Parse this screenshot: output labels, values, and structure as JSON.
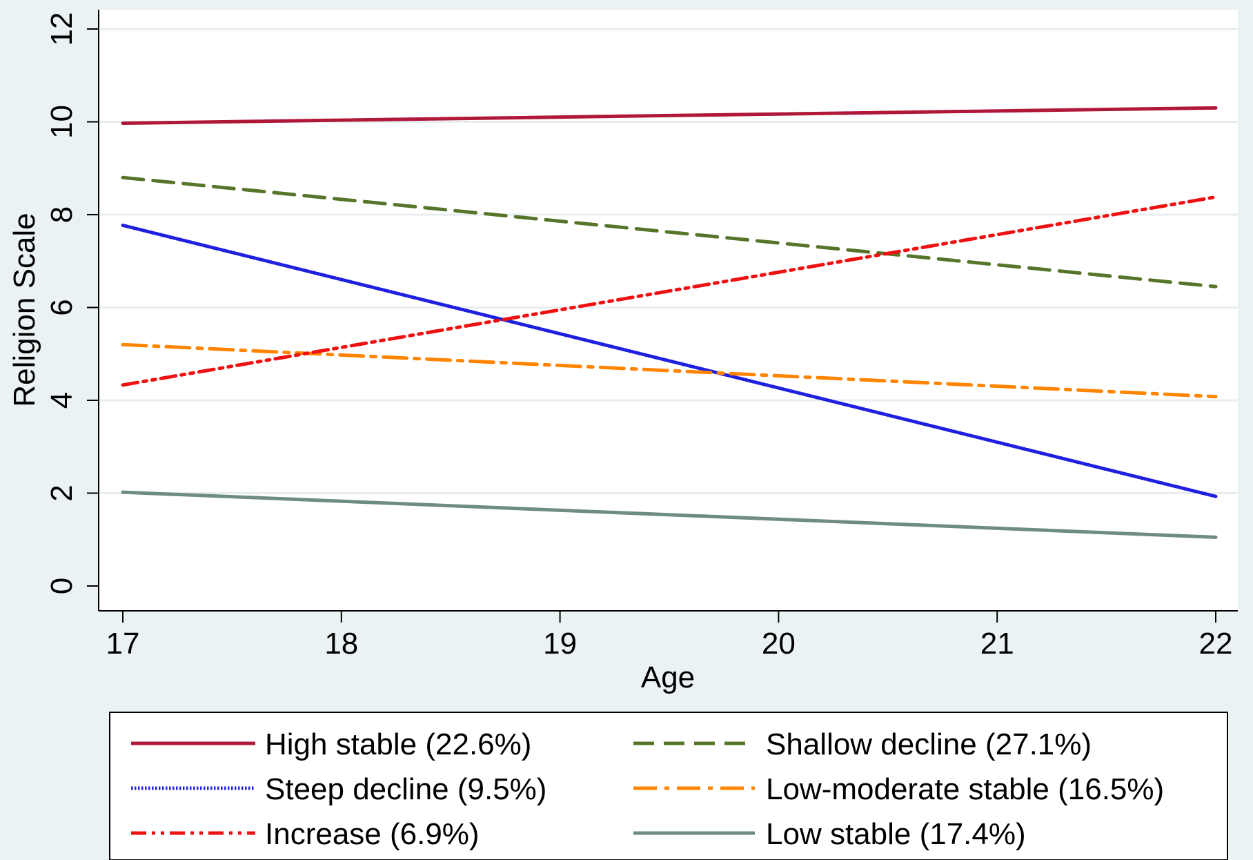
{
  "chart_data": {
    "type": "line",
    "xlabel": "Age",
    "ylabel": "Religion Scale",
    "xlim": [
      17,
      22
    ],
    "ylim": [
      0,
      12
    ],
    "x_ticks": [
      "17",
      "18",
      "19",
      "20",
      "21",
      "22"
    ],
    "y_ticks": [
      "0",
      "2",
      "4",
      "6",
      "8",
      "10",
      "12"
    ],
    "grid": true,
    "legend_position": "bottom",
    "x": [
      17,
      22
    ],
    "series": [
      {
        "name": "High stable (22.6%)",
        "values": [
          9.97,
          10.3
        ],
        "color": "#b0183a",
        "style": "solid"
      },
      {
        "name": "Shallow decline (27.1%)",
        "values": [
          8.8,
          6.45
        ],
        "color": "#56752a",
        "style": "dash"
      },
      {
        "name": "Steep decline (9.5%)",
        "values": [
          7.77,
          1.93
        ],
        "color": "#1f1fe0",
        "style": "dot"
      },
      {
        "name": "Low-moderate stable (16.5%)",
        "values": [
          5.2,
          4.08
        ],
        "color": "#ff8400",
        "style": "dashdot"
      },
      {
        "name": "Increase (6.9%)",
        "values": [
          4.33,
          8.38
        ],
        "color": "#ee1111",
        "style": "dashdotdot"
      },
      {
        "name": "Low stable (17.4%)",
        "values": [
          2.02,
          1.05
        ],
        "color": "#6e8c80",
        "style": "solid"
      }
    ]
  }
}
